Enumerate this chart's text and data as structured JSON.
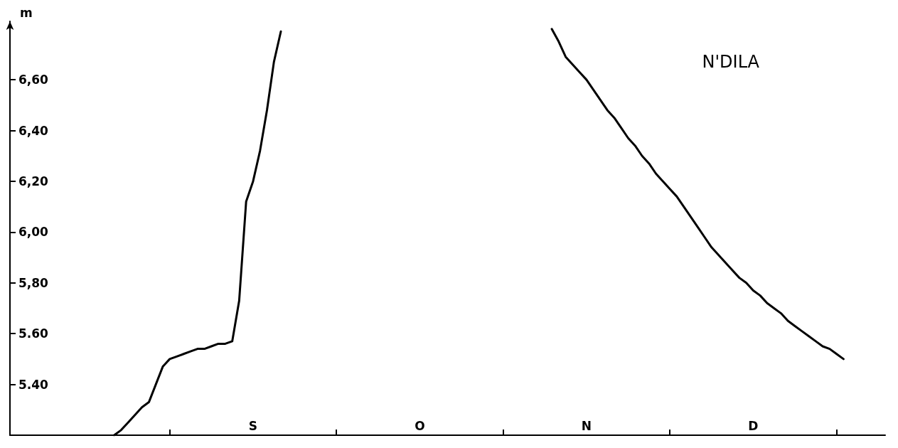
{
  "chart_data": {
    "type": "line",
    "title": "N'DILA",
    "ylabel": "m",
    "categories": [
      null,
      null,
      null,
      null,
      null,
      null,
      null,
      null,
      null,
      null,
      null,
      null,
      null,
      null,
      null,
      null,
      null,
      null,
      null,
      null,
      null,
      null,
      null,
      null,
      null,
      null,
      null,
      null,
      null,
      null,
      null,
      null,
      null,
      null,
      null,
      "S",
      null,
      null,
      null,
      null,
      null,
      null,
      null,
      null,
      null,
      null,
      null,
      null,
      null,
      null,
      null,
      null,
      null,
      null,
      null,
      null,
      null,
      null,
      null,
      "O",
      null,
      null,
      null,
      null,
      null,
      null,
      null,
      null,
      null,
      null,
      null,
      null,
      null,
      null,
      null,
      null,
      null,
      null,
      null,
      null,
      null,
      null,
      null,
      "N",
      null,
      null,
      null,
      null,
      null,
      null,
      null,
      null,
      null,
      null,
      null,
      null,
      null,
      null,
      null,
      null,
      null,
      null,
      null,
      null,
      null,
      null,
      null,
      "D",
      null,
      null,
      null,
      null,
      null,
      null,
      null,
      null,
      null,
      null,
      null,
      null,
      null,
      null,
      null,
      null,
      null,
      null,
      null
    ],
    "series": [
      {
        "color": "#000000",
        "values": [
          null,
          null,
          null,
          null,
          null,
          null,
          null,
          null,
          null,
          null,
          null,
          null,
          null,
          null,
          null,
          5.2,
          5.22,
          5.25,
          5.28,
          5.31,
          5.33,
          5.4,
          5.47,
          5.5,
          5.51,
          5.52,
          5.53,
          5.54,
          5.54,
          5.55,
          5.56,
          5.56,
          5.57,
          5.73,
          6.12,
          6.2,
          6.32,
          6.48,
          6.67,
          6.79,
          null,
          null,
          null,
          null,
          null,
          null,
          null,
          null,
          null,
          null,
          null,
          null,
          null,
          null,
          null,
          null,
          null,
          null,
          null,
          null,
          null,
          null,
          null,
          null,
          null,
          null,
          null,
          null,
          null,
          null,
          null,
          null,
          null,
          null,
          null,
          null,
          null,
          null,
          6.8,
          6.75,
          6.69,
          6.66,
          6.63,
          6.6,
          6.56,
          6.52,
          6.48,
          6.45,
          6.41,
          6.37,
          6.34,
          6.3,
          6.27,
          6.23,
          6.2,
          6.17,
          6.14,
          6.1,
          6.06,
          6.02,
          5.98,
          5.94,
          5.91,
          5.88,
          5.85,
          5.82,
          5.8,
          5.77,
          5.75,
          5.72,
          5.7,
          5.68,
          5.65,
          5.63,
          5.61,
          5.59,
          5.57,
          5.55,
          5.54,
          5.52,
          5.5,
          null,
          null,
          null,
          null,
          null,
          null
        ]
      }
    ],
    "ylim": [
      5.2,
      6.83
    ],
    "yticks": [
      {
        "value": 5.4,
        "label": "5.40"
      },
      {
        "value": 5.6,
        "label": "5.60"
      },
      {
        "value": 5.8,
        "label": "5,80"
      },
      {
        "value": 6.0,
        "label": "6,00"
      },
      {
        "value": 6.2,
        "label": "6,20"
      },
      {
        "value": 6.4,
        "label": "6,40"
      },
      {
        "value": 6.6,
        "label": "6,60"
      }
    ],
    "grid": false,
    "marker": "none",
    "line_style": "solid"
  }
}
